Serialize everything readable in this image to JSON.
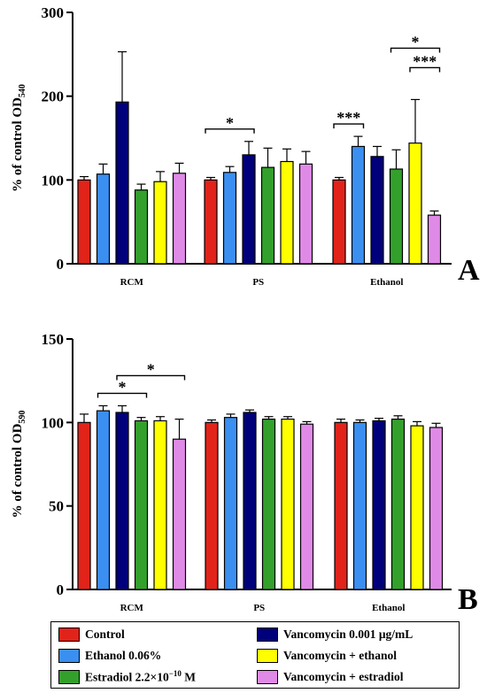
{
  "chart_data": [
    {
      "type": "bar",
      "panel_letter": "A",
      "ylabel": "% of control OD",
      "ylabel_sub": "540",
      "ylim": [
        0,
        300
      ],
      "yticks": [
        0,
        100,
        200,
        300
      ],
      "categories": [
        "RCM",
        "PS",
        "Ethanol"
      ],
      "series": [
        {
          "name": "Control",
          "values": [
            100,
            100,
            100
          ],
          "errors": [
            4,
            3,
            3
          ]
        },
        {
          "name": "Ethanol 0.06%",
          "values": [
            107,
            109,
            140
          ],
          "errors": [
            12,
            7,
            12
          ]
        },
        {
          "name": "Vancomycin 0.001 μg/mL",
          "values": [
            193,
            130,
            128
          ],
          "errors": [
            60,
            16,
            12
          ]
        },
        {
          "name": "Estradiol 2.2×10−10 M",
          "values": [
            88,
            115,
            113
          ],
          "errors": [
            7,
            23,
            23
          ]
        },
        {
          "name": "Vancomycin + ethanol",
          "values": [
            98,
            122,
            144
          ],
          "errors": [
            12,
            15,
            52
          ]
        },
        {
          "name": "Vancomycin + estradiol",
          "values": [
            108,
            119,
            58
          ],
          "errors": [
            12,
            15,
            5
          ]
        }
      ],
      "significance": [
        {
          "group": "PS",
          "from_series": 0,
          "to_series": 2,
          "label": "*"
        },
        {
          "group": "Ethanol",
          "from_series": 0,
          "to_series": 1,
          "label": "***"
        },
        {
          "group": "Ethanol",
          "from_series": 4,
          "to_series": 5,
          "label": "***"
        },
        {
          "group": "Ethanol",
          "from_series": 3,
          "to_series": 5,
          "label": "*"
        }
      ]
    },
    {
      "type": "bar",
      "panel_letter": "B",
      "ylabel": "% of control OD",
      "ylabel_sub": "590",
      "ylim": [
        0,
        150
      ],
      "yticks": [
        0,
        50,
        100,
        150
      ],
      "categories": [
        "RCM",
        "PS",
        "Ethanol"
      ],
      "series": [
        {
          "name": "Control",
          "values": [
            100,
            100,
            100
          ],
          "errors": [
            5,
            1.5,
            2
          ]
        },
        {
          "name": "Ethanol 0.06%",
          "values": [
            107,
            103,
            100
          ],
          "errors": [
            3,
            2,
            1.5
          ]
        },
        {
          "name": "Vancomycin 0.001 μg/mL",
          "values": [
            106,
            106,
            101
          ],
          "errors": [
            4,
            1.5,
            1.5
          ]
        },
        {
          "name": "Estradiol 2.2×10−10 M",
          "values": [
            101,
            102,
            102
          ],
          "errors": [
            2,
            1.5,
            2
          ]
        },
        {
          "name": "Vancomycin + ethanol",
          "values": [
            101,
            102,
            98
          ],
          "errors": [
            2.5,
            1.5,
            2.5
          ]
        },
        {
          "name": "Vancomycin + estradiol",
          "values": [
            90,
            99,
            97
          ],
          "errors": [
            12,
            1.5,
            2.5
          ]
        }
      ],
      "significance": [
        {
          "group": "RCM",
          "from_series": 1,
          "to_series": 3,
          "label": "*"
        },
        {
          "group": "RCM",
          "from_series": 2,
          "to_series": 5,
          "label": "*"
        }
      ]
    }
  ],
  "colors": [
    "#e2231a",
    "#3b8ff0",
    "#00007a",
    "#33a02c",
    "#ffff00",
    "#e08ae8"
  ],
  "legend": {
    "items": [
      {
        "label": "Control",
        "color": "#e2231a"
      },
      {
        "label": "Ethanol 0.06%",
        "color": "#3b8ff0"
      },
      {
        "label": "Estradiol 2.2×10−10 M",
        "color": "#33a02c"
      },
      {
        "label": "Vancomycin 0.001 μg/mL",
        "color": "#00007a"
      },
      {
        "label": "Vancomycin + ethanol",
        "color": "#ffff00"
      },
      {
        "label": "Vancomycin + estradiol",
        "color": "#e08ae8"
      }
    ]
  }
}
